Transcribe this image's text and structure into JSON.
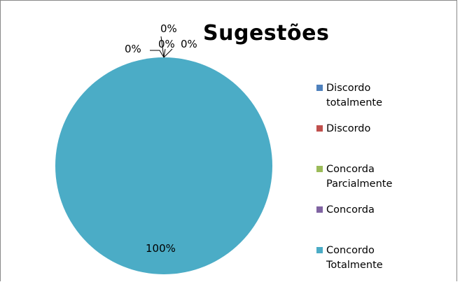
{
  "chart_data": {
    "type": "pie",
    "title": "Sugestões",
    "categories": [
      "Discordo totalmente",
      "Discordo",
      "Concorda Parcialmente",
      "Concorda",
      "Concordo Totalmente"
    ],
    "legend_labels": [
      "Discordo\ntotalmente",
      "Discordo",
      "Concorda\nParcialmente",
      "Concorda",
      "Concordo\nTotalmente"
    ],
    "values": [
      0,
      0,
      0,
      0,
      100
    ],
    "data_labels": [
      "0%",
      "0%",
      "0%",
      "0%",
      "100%"
    ],
    "colors": [
      "#4f81bd",
      "#c0504d",
      "#9bbb59",
      "#8064a2",
      "#4bacc6"
    ],
    "legend_position": "right"
  }
}
